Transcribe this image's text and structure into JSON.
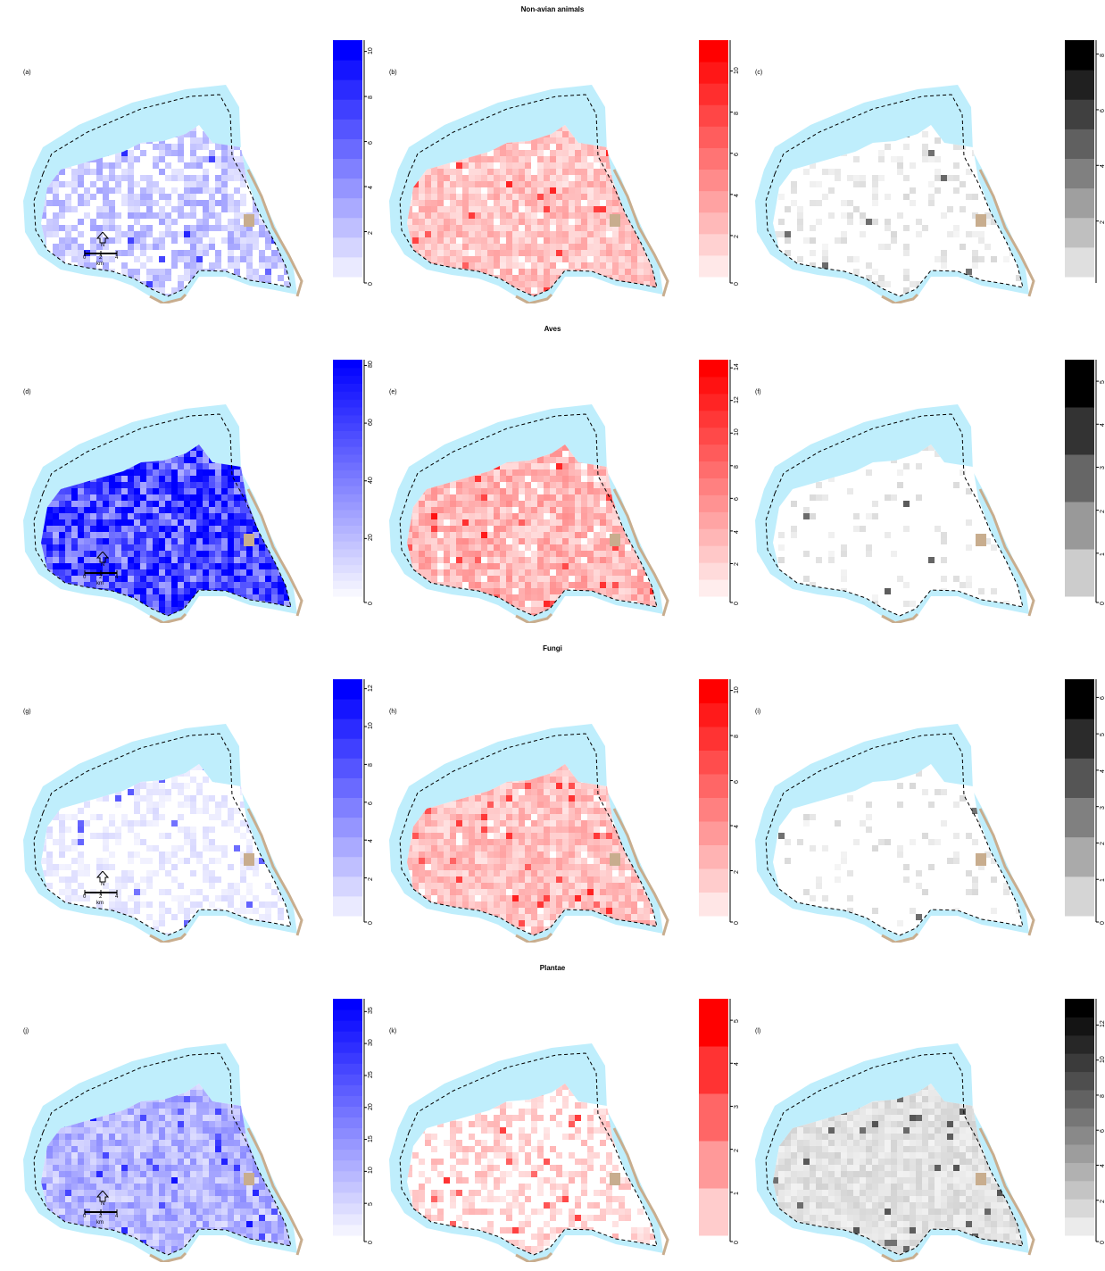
{
  "chart_data": {
    "type": "heatmap",
    "rows": [
      {
        "title": "Non-avian animals",
        "panels": [
          {
            "label": "(a)",
            "color": "#0000ff",
            "legend": {
              "min": 0,
              "max": 10.5,
              "ticks": [
                "0",
                "2",
                "4",
                "6",
                "8",
                "10"
              ],
              "steps": 12
            },
            "intensity": 0.25,
            "coverage": 0.65
          },
          {
            "label": "(b)",
            "color": "#ff0000",
            "legend": {
              "min": 0,
              "max": 11.5,
              "ticks": [
                "0",
                "2",
                "4",
                "6",
                "8",
                "10"
              ],
              "steps": 11
            },
            "intensity": 0.25,
            "coverage": 0.95
          },
          {
            "label": "(c)",
            "color": "#000000",
            "legend": {
              "min": 0,
              "max": 8.5,
              "ticks": [
                "2",
                "4",
                "6",
                "8"
              ],
              "steps": 8
            },
            "intensity": 0.1,
            "coverage": 0.2
          }
        ]
      },
      {
        "title": "Aves",
        "panels": [
          {
            "label": "(d)",
            "color": "#0000ff",
            "legend": {
              "min": 0,
              "max": 82,
              "ticks": [
                "0",
                "20",
                "40",
                "60",
                "80"
              ],
              "steps": 30
            },
            "intensity": 0.75,
            "coverage": 1.0
          },
          {
            "label": "(e)",
            "color": "#ff0000",
            "legend": {
              "min": 0,
              "max": 14.5,
              "ticks": [
                "0",
                "2",
                "4",
                "6",
                "8",
                "10",
                "12",
                "14"
              ],
              "steps": 14
            },
            "intensity": 0.3,
            "coverage": 0.95
          },
          {
            "label": "(f)",
            "color": "#000000",
            "legend": {
              "min": 0,
              "max": 5.5,
              "ticks": [
                "0",
                "1",
                "2",
                "3",
                "4",
                "5"
              ],
              "steps": 5
            },
            "intensity": 0.1,
            "coverage": 0.1
          }
        ]
      },
      {
        "title": "Fungi",
        "panels": [
          {
            "label": "(g)",
            "color": "#0000ff",
            "legend": {
              "min": 0,
              "max": 12.5,
              "ticks": [
                "0",
                "2",
                "4",
                "6",
                "8",
                "10",
                "12"
              ],
              "steps": 12
            },
            "intensity": 0.1,
            "coverage": 0.45
          },
          {
            "label": "(h)",
            "color": "#ff0000",
            "legend": {
              "min": 0,
              "max": 10.5,
              "ticks": [
                "0",
                "2",
                "4",
                "6",
                "8",
                "10"
              ],
              "steps": 10
            },
            "intensity": 0.25,
            "coverage": 0.95
          },
          {
            "label": "(i)",
            "color": "#000000",
            "legend": {
              "min": 0,
              "max": 6.5,
              "ticks": [
                "0",
                "1",
                "2",
                "3",
                "4",
                "5",
                "6"
              ],
              "steps": 6
            },
            "intensity": 0.1,
            "coverage": 0.12
          }
        ]
      },
      {
        "title": "Plantae",
        "panels": [
          {
            "label": "(j)",
            "color": "#0000ff",
            "legend": {
              "min": 0,
              "max": 37,
              "ticks": [
                "0",
                "5",
                "10",
                "15",
                "20",
                "25",
                "30",
                "35"
              ],
              "steps": 22
            },
            "intensity": 0.3,
            "coverage": 1.0
          },
          {
            "label": "(k)",
            "color": "#ff0000",
            "legend": {
              "min": 0,
              "max": 5.5,
              "ticks": [
                "0",
                "1",
                "2",
                "3",
                "4",
                "5"
              ],
              "steps": 5
            },
            "intensity": 0.2,
            "coverage": 0.45
          },
          {
            "label": "(l)",
            "color": "#000000",
            "legend": {
              "min": 0,
              "max": 13.5,
              "ticks": [
                "0",
                "2",
                "4",
                "6",
                "8",
                "10",
                "12"
              ],
              "steps": 13
            },
            "intensity": 0.12,
            "coverage": 1.0
          }
        ]
      }
    ]
  },
  "scale": {
    "north": "N",
    "tick0": "0",
    "tick2": "2",
    "tick4": "4",
    "unit": "km"
  },
  "colors": {
    "sea": "#bfeefc",
    "land_excluded": "#c8ad8e",
    "outline": "#000000"
  }
}
